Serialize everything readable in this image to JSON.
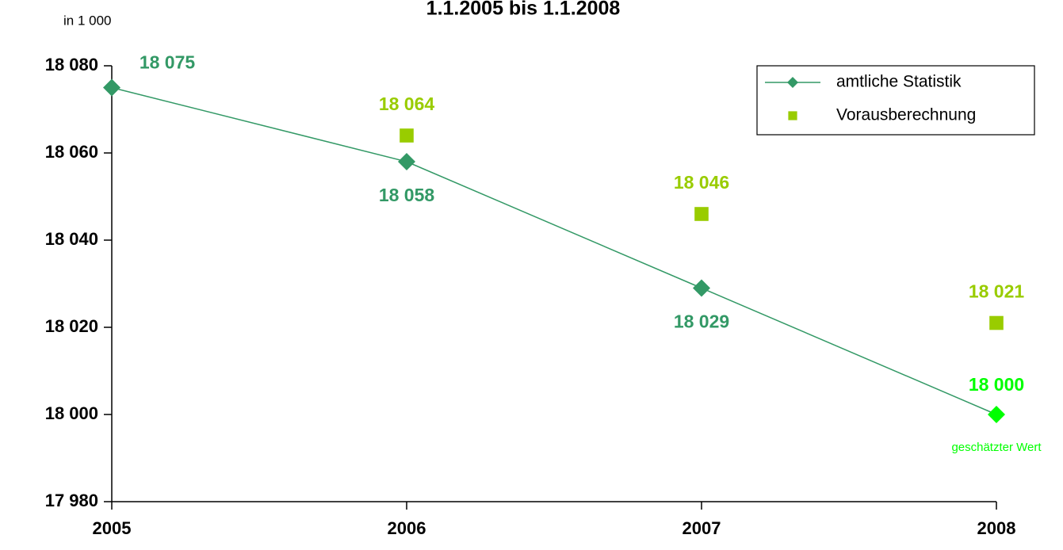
{
  "chart_data": {
    "type": "line",
    "title": "1.1.2005 bis 1.1.2008",
    "y_unit_label": "in 1 000",
    "categories": [
      "2005",
      "2006",
      "2007",
      "2008"
    ],
    "ylim": [
      17980,
      18080
    ],
    "yticks": [
      {
        "value": 17980,
        "label": "17 980"
      },
      {
        "value": 18000,
        "label": "18 000"
      },
      {
        "value": 18020,
        "label": "18 020"
      },
      {
        "value": 18040,
        "label": "18 040"
      },
      {
        "value": 18060,
        "label": "18 060"
      },
      {
        "value": 18080,
        "label": "18 080"
      }
    ],
    "legend": "upper right",
    "series": [
      {
        "name": "amtliche Statistik",
        "color": "#339966",
        "marker": "diamond",
        "line": true,
        "values": [
          18075,
          18058,
          18029,
          18000
        ],
        "value_labels": [
          "18 075",
          "18 058",
          "18 029",
          "18 000"
        ],
        "point_colors": [
          "#339966",
          "#339966",
          "#339966",
          "#00ff00"
        ]
      },
      {
        "name": "Vorausberechnung",
        "color": "#99cc00",
        "marker": "square",
        "line": false,
        "values": [
          null,
          18064,
          18046,
          18021
        ],
        "value_labels": [
          null,
          "18 064",
          "18 046",
          "18 021"
        ]
      }
    ],
    "annotations": [
      {
        "text": "geschätzter Wert",
        "color": "#00ff00"
      }
    ]
  }
}
